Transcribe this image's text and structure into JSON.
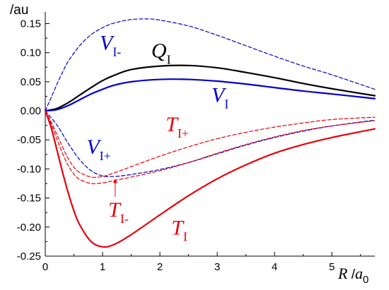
{
  "chart_data": {
    "type": "line",
    "ylabel": "/au",
    "xlabel": {
      "var": "R",
      "slash": " /",
      "unit": "a",
      "unit_sub": "0"
    },
    "xlim": [
      0,
      5.75
    ],
    "ylim": [
      -0.25,
      0.17
    ],
    "x_ticks": [
      {
        "value": 0,
        "label": "0"
      },
      {
        "value": 1,
        "label": "1"
      },
      {
        "value": 2,
        "label": "2"
      },
      {
        "value": 3,
        "label": "3"
      },
      {
        "value": 4,
        "label": "4"
      },
      {
        "value": 5,
        "label": "5"
      }
    ],
    "y_ticks": [
      {
        "value": 0.15,
        "label": "0.15"
      },
      {
        "value": 0.1,
        "label": "0.10"
      },
      {
        "value": 0.05,
        "label": "0.05"
      },
      {
        "value": 0.0,
        "label": "0.00"
      },
      {
        "value": -0.05,
        "label": "-0.05"
      },
      {
        "value": -0.1,
        "label": "-0.10"
      },
      {
        "value": -0.15,
        "label": "-0.15"
      },
      {
        "value": -0.2,
        "label": "-0.20"
      },
      {
        "value": -0.25,
        "label": "-0.25"
      }
    ],
    "grid": false,
    "colors": {
      "black": "#000000",
      "blue": "#0000cc",
      "red": "#e8000b"
    },
    "series": [
      {
        "key": "QI",
        "color": "#000000",
        "dash": false,
        "x": [
          0,
          0.2,
          0.4,
          0.6,
          0.8,
          1.0,
          1.2,
          1.5,
          2.0,
          2.5,
          3.0,
          3.5,
          4.0,
          4.5,
          5.0,
          5.75
        ],
        "y": [
          0,
          0.004,
          0.014,
          0.027,
          0.04,
          0.052,
          0.061,
          0.071,
          0.077,
          0.078,
          0.074,
          0.066,
          0.057,
          0.047,
          0.038,
          0.026
        ]
      },
      {
        "key": "VI",
        "color": "#0000cc",
        "dash": false,
        "x": [
          0,
          0.2,
          0.4,
          0.6,
          0.8,
          1.0,
          1.2,
          1.5,
          2.0,
          2.5,
          3.0,
          3.5,
          4.0,
          4.5,
          5.0,
          5.75
        ],
        "y": [
          0,
          0.002,
          0.009,
          0.019,
          0.029,
          0.037,
          0.044,
          0.05,
          0.054,
          0.054,
          0.051,
          0.046,
          0.04,
          0.034,
          0.029,
          0.021
        ]
      },
      {
        "key": "VI-",
        "color": "#0000cc",
        "dash": true,
        "x": [
          0,
          0.1,
          0.2,
          0.3,
          0.4,
          0.6,
          0.8,
          1.0,
          1.2,
          1.5,
          1.8,
          2.0,
          2.5,
          3.0,
          3.5,
          4.0,
          4.5,
          5.0,
          5.75
        ],
        "y": [
          0,
          0.022,
          0.045,
          0.066,
          0.085,
          0.112,
          0.131,
          0.143,
          0.151,
          0.157,
          0.158,
          0.156,
          0.146,
          0.13,
          0.112,
          0.094,
          0.077,
          0.062,
          0.037
        ]
      },
      {
        "key": "VI+",
        "color": "#0000cc",
        "dash": true,
        "x": [
          0,
          0.2,
          0.4,
          0.6,
          0.8,
          1.0,
          1.2,
          1.4,
          1.6,
          2.0,
          2.5,
          3.0,
          3.5,
          4.0,
          4.5,
          5.0,
          5.75
        ],
        "y": [
          0,
          -0.024,
          -0.056,
          -0.084,
          -0.103,
          -0.112,
          -0.113,
          -0.111,
          -0.108,
          -0.101,
          -0.089,
          -0.074,
          -0.059,
          -0.046,
          -0.035,
          -0.026,
          -0.016
        ]
      },
      {
        "key": "TI",
        "color": "#e8000b",
        "dash": false,
        "x": [
          0,
          0.1,
          0.2,
          0.3,
          0.4,
          0.5,
          0.6,
          0.8,
          1.0,
          1.2,
          1.5,
          2.0,
          2.5,
          3.0,
          3.5,
          4.0,
          4.5,
          5.0,
          5.75
        ],
        "y": [
          0,
          -0.028,
          -0.066,
          -0.105,
          -0.141,
          -0.172,
          -0.196,
          -0.225,
          -0.234,
          -0.23,
          -0.213,
          -0.179,
          -0.146,
          -0.117,
          -0.093,
          -0.073,
          -0.058,
          -0.046,
          -0.031
        ]
      },
      {
        "key": "TI-",
        "color": "#e8000b",
        "dash": true,
        "x": [
          0,
          0.1,
          0.2,
          0.3,
          0.4,
          0.5,
          0.6,
          0.8,
          1.0,
          1.2,
          1.5,
          2.0,
          2.5,
          3.0,
          3.5,
          4.0,
          4.5,
          5.0,
          5.75
        ],
        "y": [
          0,
          -0.022,
          -0.048,
          -0.073,
          -0.094,
          -0.109,
          -0.118,
          -0.125,
          -0.124,
          -0.12,
          -0.114,
          -0.103,
          -0.089,
          -0.073,
          -0.058,
          -0.045,
          -0.034,
          -0.026,
          -0.017
        ]
      },
      {
        "key": "TI+",
        "color": "#e8000b",
        "dash": true,
        "x": [
          0,
          0.1,
          0.2,
          0.3,
          0.4,
          0.5,
          0.6,
          0.8,
          1.0,
          1.2,
          1.5,
          2.0,
          2.5,
          3.0,
          3.5,
          4.0,
          4.5,
          5.0,
          5.75
        ],
        "y": [
          0,
          -0.018,
          -0.04,
          -0.062,
          -0.082,
          -0.097,
          -0.106,
          -0.114,
          -0.113,
          -0.107,
          -0.096,
          -0.078,
          -0.062,
          -0.048,
          -0.037,
          -0.028,
          -0.021,
          -0.015,
          -0.011
        ]
      }
    ],
    "annotations": [
      {
        "key": "VI-",
        "main": "V",
        "sub": "I-",
        "color": "#0000cc",
        "at": [
          0.95,
          0.105
        ]
      },
      {
        "key": "QI",
        "main": "Q",
        "sub": "I",
        "color": "#000000",
        "at": [
          1.85,
          0.092
        ]
      },
      {
        "key": "VI",
        "main": "V",
        "sub": "I",
        "color": "#0000cc",
        "at": [
          2.9,
          0.015
        ]
      },
      {
        "key": "TI+",
        "main": "T",
        "sub": "I+",
        "color": "#e8000b",
        "at": [
          2.1,
          -0.035
        ]
      },
      {
        "key": "VI+",
        "main": "V",
        "sub": "I+",
        "color": "#0000cc",
        "at": [
          0.72,
          -0.074
        ]
      },
      {
        "key": "TI-",
        "main": "T",
        "sub": "I-",
        "color": "#e8000b",
        "at": [
          1.1,
          -0.182
        ]
      },
      {
        "key": "TI",
        "main": "T",
        "sub": "I",
        "color": "#e8000b",
        "at": [
          2.2,
          -0.213
        ]
      }
    ],
    "arrow": {
      "color": "#e8000b",
      "from": [
        1.22,
        -0.148
      ],
      "to": [
        1.22,
        -0.117
      ]
    }
  }
}
